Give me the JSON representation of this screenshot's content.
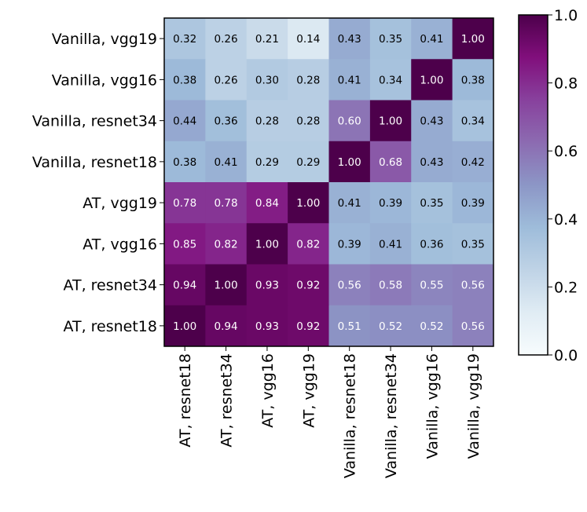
{
  "chart_data": {
    "type": "heatmap",
    "title": "",
    "xlabel": "",
    "ylabel": "",
    "row_labels": [
      "Vanilla, vgg19",
      "Vanilla, vgg16",
      "Vanilla, resnet34",
      "Vanilla, resnet18",
      "AT, vgg19",
      "AT, vgg16",
      "AT, resnet34",
      "AT, resnet18"
    ],
    "col_labels": [
      "AT, resnet18",
      "AT, resnet34",
      "AT, vgg16",
      "AT, vgg19",
      "Vanilla, resnet18",
      "Vanilla, resnet34",
      "Vanilla, vgg16",
      "Vanilla, vgg19"
    ],
    "values": [
      [
        0.32,
        0.26,
        0.21,
        0.14,
        0.43,
        0.35,
        0.41,
        1.0
      ],
      [
        0.38,
        0.26,
        0.3,
        0.28,
        0.41,
        0.34,
        1.0,
        0.38
      ],
      [
        0.44,
        0.36,
        0.28,
        0.28,
        0.6,
        1.0,
        0.43,
        0.34
      ],
      [
        0.38,
        0.41,
        0.29,
        0.29,
        1.0,
        0.68,
        0.43,
        0.42
      ],
      [
        0.78,
        0.78,
        0.84,
        1.0,
        0.41,
        0.39,
        0.35,
        0.39
      ],
      [
        0.85,
        0.82,
        1.0,
        0.82,
        0.39,
        0.41,
        0.36,
        0.35
      ],
      [
        0.94,
        1.0,
        0.93,
        0.92,
        0.56,
        0.58,
        0.55,
        0.56
      ],
      [
        1.0,
        0.94,
        0.93,
        0.92,
        0.51,
        0.52,
        0.52,
        0.56
      ]
    ],
    "colormap": "BuPu",
    "colorbar": {
      "range": [
        0.0,
        1.0
      ],
      "ticks": [
        0.0,
        0.2,
        0.4,
        0.6,
        0.8,
        1.0
      ],
      "tick_labels": [
        "0.0",
        "0.2",
        "0.4",
        "0.6",
        "0.8",
        "1.0"
      ]
    },
    "value_format": "2dp"
  },
  "colors": {
    "text_light": "#ffffff",
    "text_dark": "#000000",
    "cmap_stops": [
      "#f7fcfd",
      "#e0ecf4",
      "#bfd3e6",
      "#9ebcda",
      "#8c96c6",
      "#8c6bb1",
      "#88419d",
      "#810f7c",
      "#4d004b"
    ]
  }
}
